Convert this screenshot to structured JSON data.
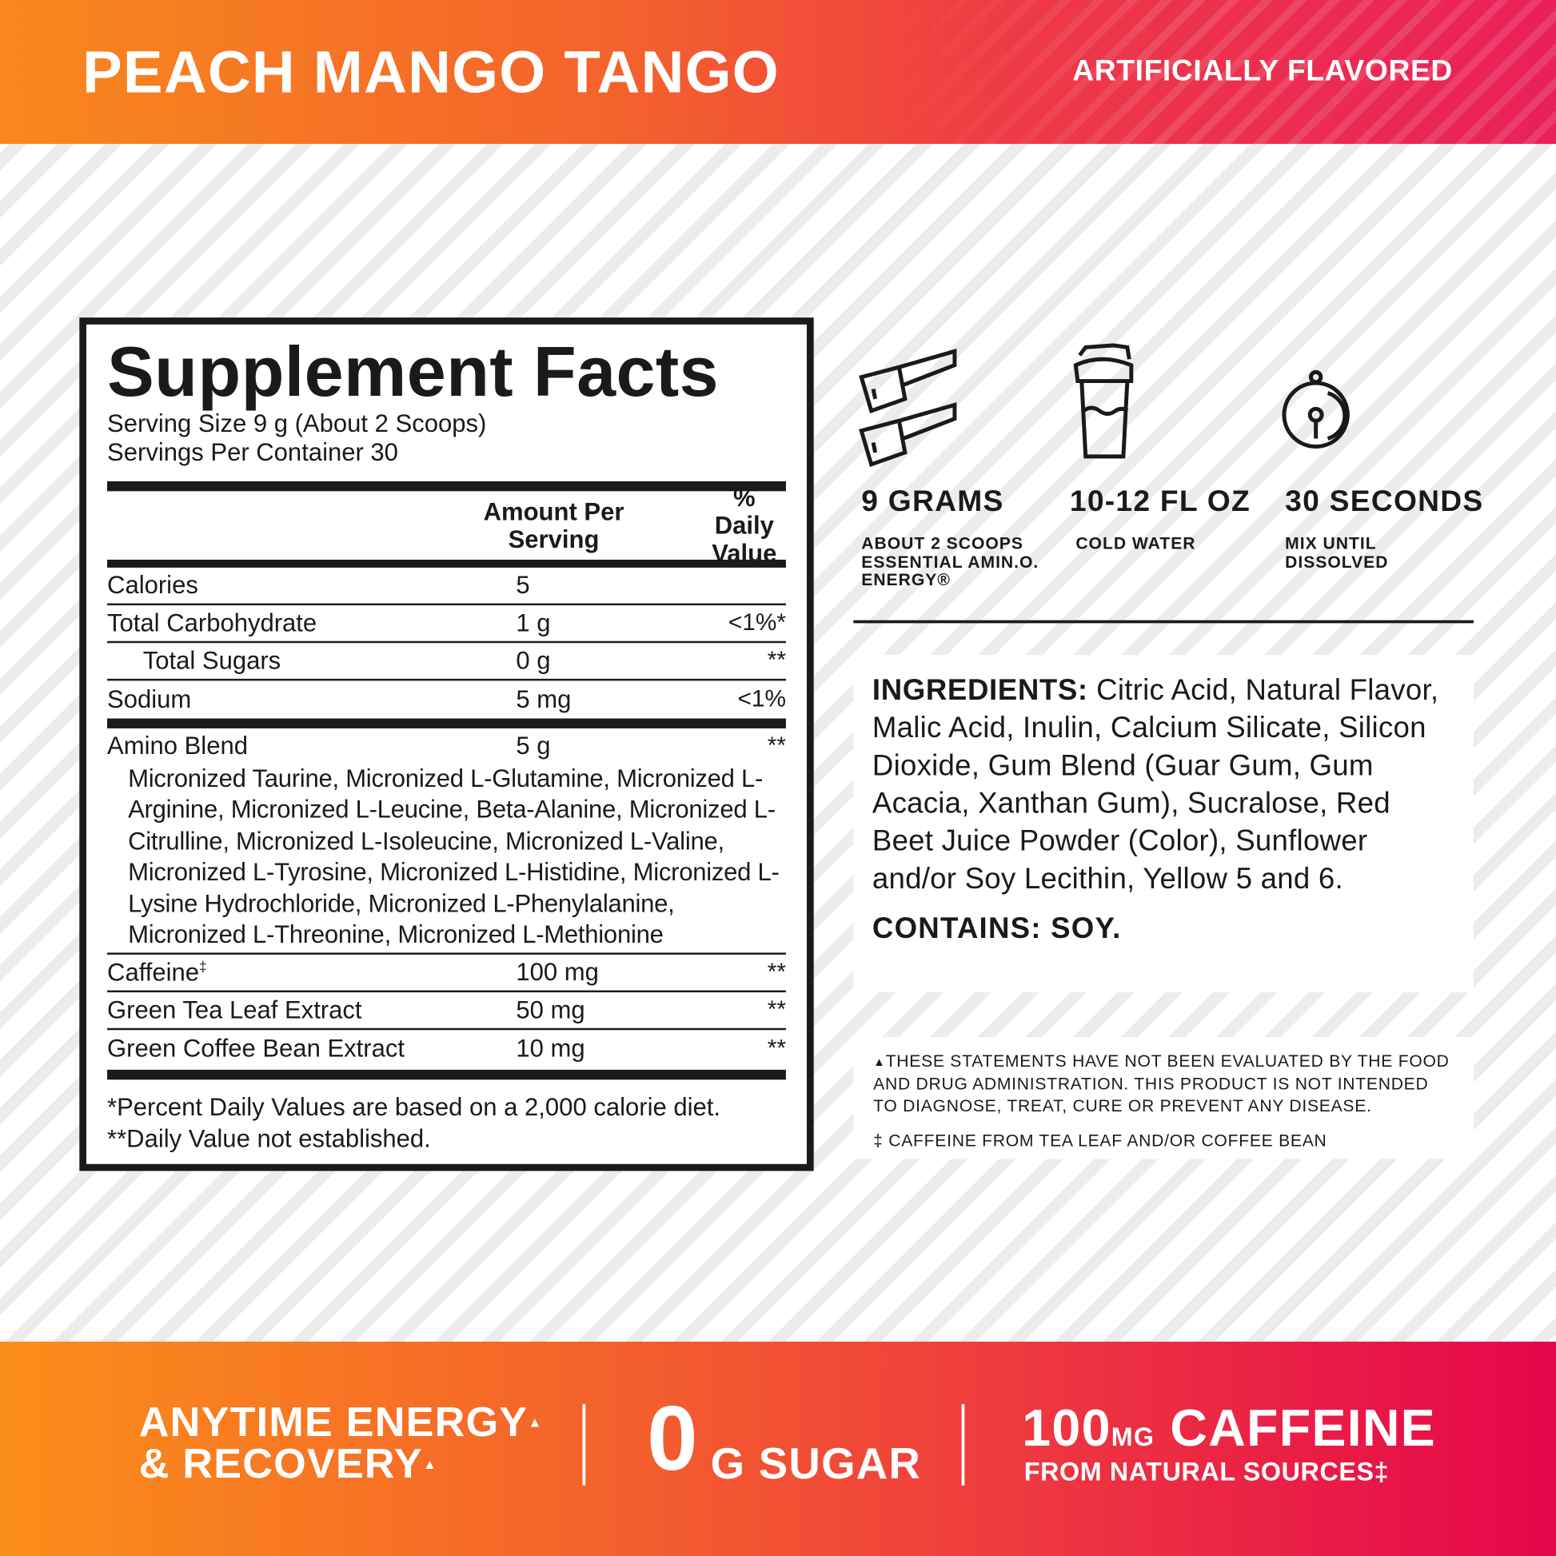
{
  "banner": {
    "flavor": "PEACH MANGO TANGO",
    "artificially": "ARTIFICIALLY FLAVORED",
    "colors": {
      "orange": "#f8881d",
      "red": "#ee3a45",
      "pink": "#e6054b"
    }
  },
  "facts": {
    "title": "Supplement Facts",
    "serving_size": "Serving Size 9 g (About 2 Scoops)",
    "servings": "Servings Per Container 30",
    "col_amount": "Amount Per Serving",
    "col_dv": "% Daily Value",
    "rows": [
      {
        "name": "Calories",
        "amount": "5",
        "dv": ""
      },
      {
        "name": "Total Carbohydrate",
        "amount": "1 g",
        "dv": "<1%*"
      },
      {
        "name": "Total Sugars",
        "amount": "0 g",
        "dv": "**"
      },
      {
        "name": "Sodium",
        "amount": "5 mg",
        "dv": "<1%"
      },
      {
        "name": "Amino Blend",
        "amount": "5 g",
        "dv": "**"
      },
      {
        "name": "Caffeine",
        "sup": "‡",
        "amount": "100 mg",
        "dv": "**"
      },
      {
        "name": "Green Tea Leaf Extract",
        "amount": "50 mg",
        "dv": "**"
      },
      {
        "name": "Green Coffee Bean Extract",
        "amount": "10 mg",
        "dv": "**"
      }
    ],
    "amino_blend": "Micronized Taurine, Micronized L-Glutamine, Micronized L-Arginine, Micronized L-Leucine, Beta-Alanine, Micronized L-Citrulline, Micronized L-Isoleucine, Micronized L-Valine, Micronized L-Tyrosine, Micronized L-Histidine, Micronized L-Lysine Hydrochloride, Micronized L-Phenylalanine, Micronized L-Threonine, Micronized L-Methionine",
    "footnote1": "*Percent Daily Values are based on a 2,000 calorie diet.",
    "footnote2": "**Daily Value not established."
  },
  "directions": [
    {
      "icon": "scoops-icon",
      "head": "9 GRAMS",
      "sub": [
        "ABOUT 2 SCOOPS",
        "ESSENTIAL AMIN.O.",
        "ENERGY®"
      ]
    },
    {
      "icon": "shaker-icon",
      "head": "10-12 FL OZ",
      "sub": [
        "COLD WATER"
      ]
    },
    {
      "icon": "stopwatch-icon",
      "head": "30 SECONDS",
      "sub": [
        "MIX UNTIL",
        "DISSOLVED"
      ]
    }
  ],
  "ingredients": {
    "label": "INGREDIENTS:",
    "text": " Citric Acid, Natural Flavor, Malic Acid, Inulin, Calcium Silicate, Silicon Dioxide, Gum Blend (Guar Gum, Gum Acacia, Xanthan Gum), Sucralose, Red Beet Juice Powder (Color), Sunflower and/or Soy Lecithin, Yellow 5 and 6.",
    "contains": "CONTAINS: SOY."
  },
  "disclaimer": {
    "mark": "▲",
    "text": "THESE STATEMENTS HAVE NOT BEEN EVALUATED BY THE FOOD AND DRUG ADMINISTRATION. THIS PRODUCT IS NOT INTENDED TO DIAGNOSE, TREAT, CURE OR PREVENT ANY DISEASE.",
    "caffeine_note": "‡ CAFFEINE FROM TEA LEAF AND/OR COFFEE BEAN"
  },
  "claims": {
    "energy1": "ANYTIME ENERGY",
    "energy2": "& RECOVERY",
    "mark": "▲",
    "zero": "0",
    "sugar": "G SUGAR",
    "caff_num": "100",
    "caff_unit": "MG",
    "caff_word": "CAFFEINE",
    "caff_sub": "FROM NATURAL SOURCES‡"
  }
}
